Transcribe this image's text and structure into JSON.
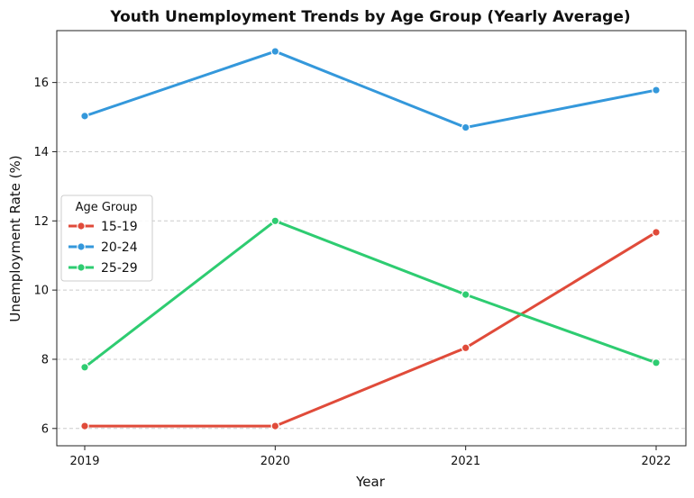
{
  "chart_data": {
    "type": "line",
    "title": "Youth Unemployment Trends by Age Group (Yearly Average)",
    "xlabel": "Year",
    "ylabel": "Unemployment Rate (%)",
    "categories": [
      "2019",
      "2020",
      "2021",
      "2022"
    ],
    "ylim": [
      5.5,
      17.5
    ],
    "yticks": [
      6,
      8,
      10,
      12,
      14,
      16
    ],
    "grid": "y-dashed",
    "legend": {
      "title": "Age Group",
      "placement": "center-left"
    },
    "series": [
      {
        "name": "15-19",
        "color": "#e04b3a",
        "values": [
          6.07,
          6.07,
          8.33,
          11.67
        ]
      },
      {
        "name": "20-24",
        "color": "#3498db",
        "values": [
          15.03,
          16.9,
          14.7,
          15.78
        ]
      },
      {
        "name": "25-29",
        "color": "#2ecc71",
        "values": [
          7.77,
          12.0,
          9.87,
          7.9
        ]
      }
    ]
  }
}
